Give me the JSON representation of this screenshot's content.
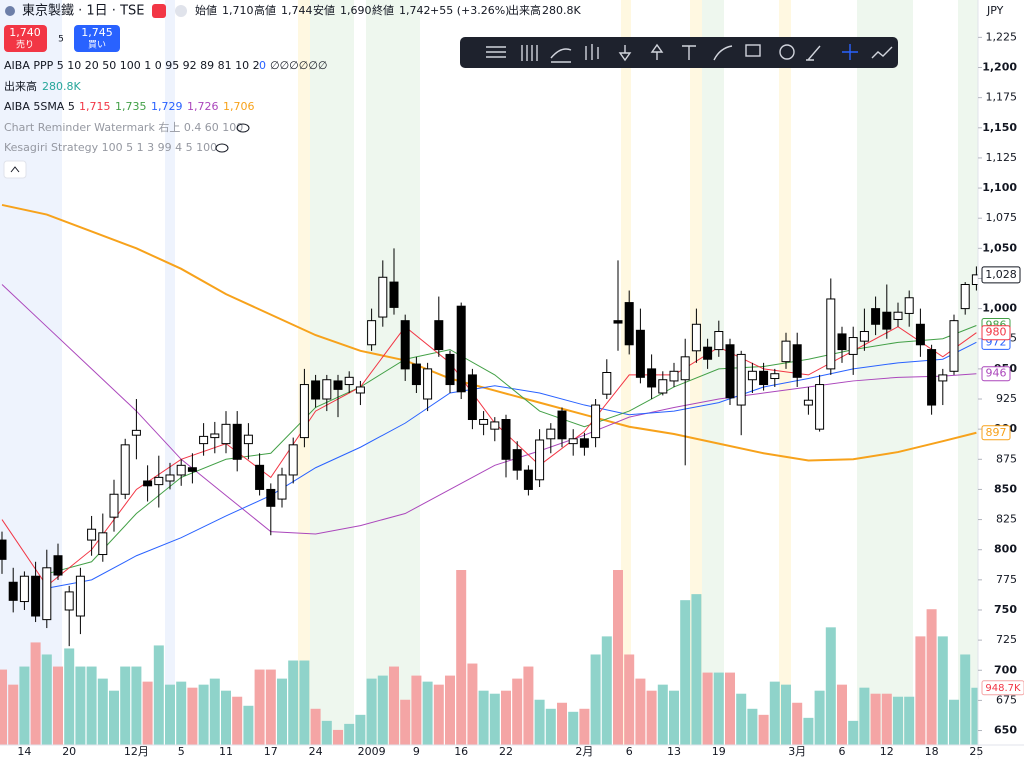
{
  "header": {
    "symbol": "東京製鐵 · 1日 · TSE",
    "open_label": "始値",
    "open": "1,710",
    "high_label": "高値",
    "high": "1,744",
    "low_label": "安値",
    "low": "1,690",
    "close_label": "終値",
    "close": "1,742",
    "change": "+55 (+3.26%)",
    "volume_label": "出来高",
    "volume": "280.8K",
    "currency": "JPY"
  },
  "trade": {
    "sell_price": "1,740",
    "sell": "売り",
    "spread": "5",
    "buy_price": "1,745",
    "buy": "買い"
  },
  "indicators": [
    {
      "name": "AIBA PPP 5 10 20 50 100 1 0 95 92 89 81 10 2",
      "values": [
        "0",
        "∅∅∅∅∅∅"
      ]
    },
    {
      "name": "出来高",
      "values": [
        "280.8K"
      ]
    },
    {
      "name": "AIBA 5SMA 5",
      "values": [
        "1,715",
        "1,735",
        "1,729",
        "1,726",
        "1,706"
      ]
    },
    {
      "name": "Chart Reminder Watermark 右上 0.4 60 100"
    },
    {
      "name": "Kesagiri Strategy 100 5 1 3 99 4 5 100"
    }
  ],
  "chart_data": {
    "type": "candlestick",
    "categories": [
      null,
      null,
      "14",
      null,
      null,
      null,
      "20",
      null,
      null,
      null,
      null,
      null,
      "12月",
      null,
      null,
      null,
      "5",
      null,
      null,
      null,
      "11",
      null,
      null,
      null,
      "17",
      null,
      null,
      null,
      "24",
      null,
      null,
      null,
      null,
      "2009",
      null,
      null,
      null,
      "9",
      null,
      null,
      null,
      "16",
      null,
      null,
      null,
      "22",
      null,
      null,
      null,
      null,
      null,
      null,
      "2月",
      null,
      null,
      null,
      "6",
      null,
      null,
      null,
      "13",
      null,
      null,
      null,
      "19",
      null,
      null,
      null,
      null,
      null,
      null,
      "3月",
      null,
      null,
      null,
      "6",
      null,
      null,
      null,
      "12",
      null,
      null,
      null,
      "18",
      null,
      null,
      null,
      "25"
    ],
    "open": [
      808,
      773,
      757,
      778,
      742,
      795,
      750,
      745,
      808,
      796,
      827,
      846,
      895,
      857,
      854,
      857,
      862,
      868,
      888,
      893,
      888,
      904,
      888,
      870,
      850,
      842,
      862,
      893,
      940,
      925,
      940,
      937,
      930,
      970,
      993,
      1022,
      990,
      954,
      925,
      990,
      962,
      1002,
      945,
      904,
      900,
      908,
      883,
      866,
      858,
      892,
      915,
      888,
      892,
      893,
      929,
      990,
      1005,
      982,
      950,
      930,
      940,
      941,
      965,
      968,
      966,
      970,
      920,
      941,
      948,
      942,
      956,
      970,
      920,
      900,
      950,
      979,
      962,
      973,
      1000,
      997,
      991,
      996,
      987,
      966,
      940,
      948,
      1000,
      1020
    ],
    "high": [
      815,
      785,
      782,
      790,
      800,
      805,
      770,
      785,
      828,
      830,
      858,
      892,
      925,
      870,
      878,
      872,
      875,
      880,
      905,
      906,
      915,
      915,
      905,
      880,
      855,
      868,
      893,
      950,
      945,
      945,
      945,
      948,
      940,
      1000,
      1040,
      1050,
      995,
      960,
      955,
      1010,
      965,
      1005,
      950,
      915,
      910,
      912,
      890,
      870,
      900,
      905,
      918,
      900,
      897,
      925,
      958,
      1040,
      1015,
      1000,
      962,
      948,
      955,
      975,
      1000,
      975,
      990,
      975,
      965,
      955,
      955,
      950,
      980,
      980,
      935,
      945,
      1025,
      985,
      985,
      1000,
      1010,
      1020,
      1005,
      1015,
      1000,
      970,
      950,
      995,
      1022,
      1035
    ],
    "low": [
      780,
      748,
      750,
      740,
      735,
      775,
      720,
      730,
      795,
      790,
      815,
      842,
      875,
      840,
      835,
      850,
      853,
      855,
      878,
      880,
      880,
      865,
      875,
      845,
      812,
      835,
      855,
      885,
      918,
      915,
      910,
      930,
      920,
      965,
      985,
      995,
      940,
      930,
      915,
      960,
      930,
      925,
      900,
      895,
      890,
      860,
      858,
      845,
      852,
      880,
      885,
      878,
      878,
      885,
      925,
      965,
      962,
      938,
      925,
      928,
      935,
      870,
      955,
      950,
      960,
      920,
      895,
      930,
      932,
      935,
      950,
      935,
      912,
      898,
      945,
      955,
      945,
      965,
      978,
      975,
      985,
      985,
      960,
      912,
      920,
      945,
      995,
      1015
    ],
    "close": [
      792,
      758,
      778,
      745,
      785,
      779,
      765,
      778,
      817,
      814,
      846,
      887,
      899,
      853,
      860,
      862,
      870,
      865,
      894,
      896,
      904,
      875,
      895,
      850,
      836,
      862,
      887,
      937,
      925,
      941,
      933,
      943,
      935,
      990,
      1026,
      1001,
      950,
      937,
      950,
      966,
      937,
      931,
      908,
      908,
      906,
      875,
      866,
      850,
      891,
      900,
      892,
      892,
      885,
      920,
      947,
      988,
      970,
      943,
      935,
      941,
      948,
      960,
      987,
      958,
      981,
      926,
      962,
      948,
      937,
      946,
      973,
      943,
      924,
      937,
      1008,
      966,
      976,
      981,
      987,
      983,
      997,
      1009,
      970,
      920,
      945,
      990,
      1020,
      1028
    ],
    "volume": [
      1250000,
      1000000,
      1300000,
      1700000,
      1500000,
      1300000,
      1600000,
      1300000,
      1300000,
      1100000,
      900000,
      1300000,
      1300000,
      1050000,
      1650000,
      1000000,
      1050000,
      950000,
      1000000,
      1100000,
      900000,
      800000,
      650000,
      1250000,
      1250000,
      1100000,
      1400000,
      1400000,
      600000,
      400000,
      250000,
      350000,
      500000,
      1100000,
      1150000,
      1300000,
      750000,
      1150000,
      1050000,
      1000000,
      1150000,
      2900000,
      1350000,
      900000,
      850000,
      900000,
      1100000,
      1300000,
      750000,
      600000,
      700000,
      550000,
      600000,
      1500000,
      1800000,
      2900000,
      1500000,
      1100000,
      900000,
      1000000,
      900000,
      2400000,
      2500000,
      1200000,
      1200000,
      1200000,
      850000,
      600000,
      500000,
      1050000,
      1000000,
      700000,
      450000,
      900000,
      1950000,
      1000000,
      400000,
      950000,
      850000,
      850000,
      800000,
      800000,
      1800000,
      2250000,
      1800000,
      750000,
      1500000,
      948700
    ],
    "up_color": "#ffffff",
    "down_color": "#000000",
    "volume_up_color": "#8fd3ca",
    "volume_down_color": "#f4a5a5",
    "lines": [
      {
        "color": "#f7a21b",
        "x": [
          0,
          4,
          8,
          12,
          16,
          20,
          24,
          28,
          32,
          36,
          40,
          44,
          48,
          52,
          56,
          60,
          64,
          68,
          72,
          76,
          80,
          84,
          87
        ],
        "values": [
          1086,
          1078,
          1064,
          1050,
          1033,
          1012,
          995,
          978,
          965,
          957,
          942,
          932,
          922,
          912,
          902,
          896,
          888,
          880,
          874,
          875,
          881,
          890,
          897
        ]
      },
      {
        "color": "#ab47bc",
        "x": [
          0,
          4,
          8,
          12,
          16,
          20,
          24,
          28,
          32,
          36,
          40,
          44,
          48,
          52,
          56,
          60,
          64,
          68,
          72,
          76,
          80,
          84,
          87
        ],
        "values": [
          1020,
          985,
          950,
          915,
          875,
          845,
          815,
          813,
          820,
          830,
          850,
          870,
          882,
          895,
          910,
          918,
          925,
          930,
          935,
          940,
          943,
          944,
          946
        ]
      },
      {
        "color": "#2962ff",
        "x": [
          4,
          8,
          12,
          16,
          20,
          24,
          28,
          32,
          36,
          40,
          44,
          48,
          52,
          56,
          60,
          64,
          68,
          72,
          76,
          80,
          84,
          87
        ],
        "values": [
          768,
          775,
          795,
          810,
          828,
          845,
          868,
          885,
          905,
          930,
          936,
          930,
          920,
          912,
          915,
          922,
          935,
          942,
          950,
          955,
          958,
          972
        ]
      },
      {
        "color": "#43a047",
        "x": [
          4,
          8,
          12,
          16,
          20,
          24,
          28,
          32,
          36,
          40,
          44,
          48,
          52,
          56,
          60,
          64,
          68,
          72,
          76,
          80,
          84,
          87
        ],
        "values": [
          780,
          790,
          830,
          860,
          875,
          880,
          918,
          935,
          958,
          966,
          945,
          915,
          902,
          915,
          935,
          950,
          952,
          958,
          966,
          972,
          975,
          986
        ]
      },
      {
        "color": "#f23645",
        "x": [
          0,
          4,
          8,
          12,
          16,
          20,
          24,
          28,
          32,
          36,
          40,
          44,
          48,
          52,
          56,
          60,
          64,
          68,
          72,
          76,
          80,
          84,
          87
        ],
        "values": [
          825,
          770,
          800,
          850,
          875,
          888,
          860,
          915,
          935,
          985,
          955,
          905,
          870,
          898,
          945,
          945,
          968,
          950,
          945,
          965,
          985,
          960,
          980
        ]
      }
    ],
    "last_price": {
      "value": 1028,
      "label": "1,028"
    },
    "volume_last": {
      "value": 948700,
      "label": "948.7K"
    },
    "ylim": [
      638,
      1256
    ],
    "yticks": [
      {
        "value": 650,
        "label": "650"
      },
      {
        "value": 675,
        "label": "675"
      },
      {
        "value": 700,
        "label": "700"
      },
      {
        "value": 725,
        "label": "725"
      },
      {
        "value": 750,
        "label": "750"
      },
      {
        "value": 775,
        "label": "775"
      },
      {
        "value": 800,
        "label": "800"
      },
      {
        "value": 825,
        "label": "825"
      },
      {
        "value": 850,
        "label": "850"
      },
      {
        "value": 875,
        "label": "875"
      },
      {
        "value": 900,
        "label": "900"
      },
      {
        "value": 925,
        "label": "925"
      },
      {
        "value": 950,
        "label": "950"
      },
      {
        "value": 975,
        "label": "975"
      },
      {
        "value": 1000,
        "label": "1,000"
      },
      {
        "value": 1025,
        "label": "1,025"
      },
      {
        "value": 1050,
        "label": "1,050"
      },
      {
        "value": 1075,
        "label": "1,075"
      },
      {
        "value": 1100,
        "label": "1,100"
      },
      {
        "value": 1125,
        "label": "1,125"
      },
      {
        "value": 1150,
        "label": "1,150"
      },
      {
        "value": 1175,
        "label": "1,175"
      },
      {
        "value": 1200,
        "label": "1,200"
      },
      {
        "value": 1225,
        "label": "1,225"
      }
    ]
  }
}
